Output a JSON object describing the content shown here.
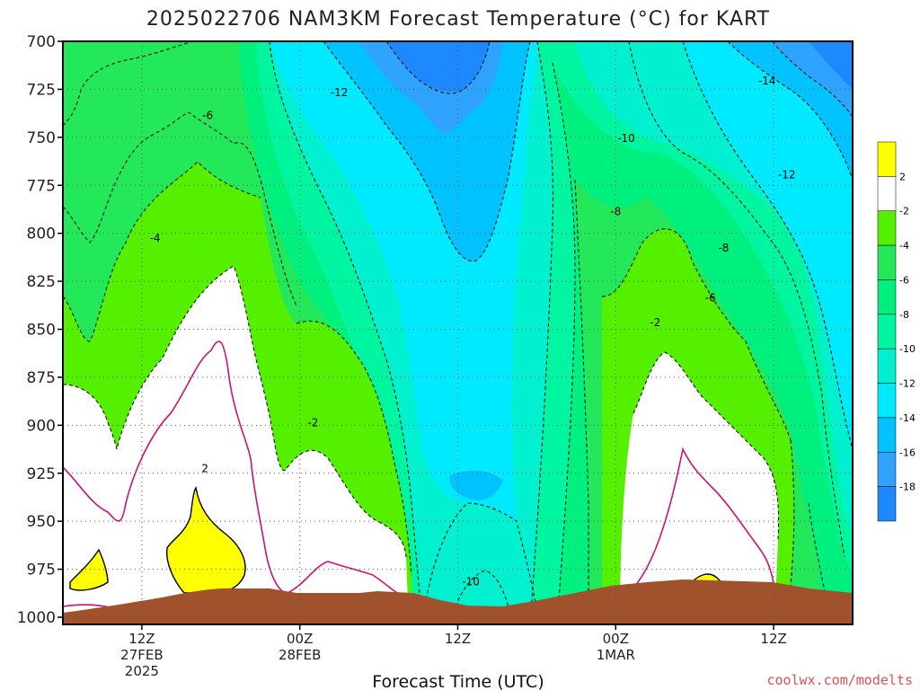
{
  "chart_data": {
    "type": "heatmap",
    "title": "2025022706 NAM3KM Forecast Temperature (°C) for KART",
    "xlabel": "Forecast Time (UTC)",
    "ylabel": "",
    "y_axis": {
      "variable": "pressure_hPa",
      "range": [
        1000,
        700
      ],
      "ticks": [
        "700",
        "725",
        "750",
        "775",
        "800",
        "825",
        "850",
        "875",
        "900",
        "925",
        "950",
        "975",
        "1000"
      ]
    },
    "x_axis": {
      "variable": "forecast_hour",
      "range": [
        6,
        66
      ],
      "ticks": [
        {
          "hour": 12,
          "line1": "12Z",
          "line2": "27FEB",
          "line3": "2025"
        },
        {
          "hour": 24,
          "line1": "00Z",
          "line2": "28FEB",
          "line3": ""
        },
        {
          "hour": 36,
          "line1": "12Z",
          "line2": "",
          "line3": ""
        },
        {
          "hour": 48,
          "line1": "00Z",
          "line2": "1MAR",
          "line3": ""
        },
        {
          "hour": 60,
          "line1": "12Z",
          "line2": "",
          "line3": ""
        }
      ]
    },
    "grid": true,
    "colorbar": {
      "placement": "right",
      "bins": [
        {
          "range": [
            -20,
            -18
          ],
          "color": "#1e88ff"
        },
        {
          "range": [
            -18,
            -16
          ],
          "color": "#2ea3ff"
        },
        {
          "range": [
            -16,
            -14
          ],
          "color": "#00c2ff"
        },
        {
          "range": [
            -14,
            -12
          ],
          "color": "#00eaff"
        },
        {
          "range": [
            -12,
            -10
          ],
          "color": "#00f0d0"
        },
        {
          "range": [
            -10,
            -8
          ],
          "color": "#00f5a0"
        },
        {
          "range": [
            -8,
            -6
          ],
          "color": "#00f080"
        },
        {
          "range": [
            -6,
            -4
          ],
          "color": "#22e85a"
        },
        {
          "range": [
            -4,
            -2
          ],
          "color": "#55f000"
        },
        {
          "range": [
            -2,
            2
          ],
          "color": "#ffffff"
        },
        {
          "range": [
            2,
            4
          ],
          "color": "#ffff00"
        }
      ],
      "labels": [
        "2",
        "-2",
        "-4",
        "-6",
        "-8",
        "-10",
        "-12",
        "-14",
        "-16",
        "-18"
      ]
    },
    "contour_labels": [
      {
        "text": "-12",
        "hour": 27.0,
        "p": 728
      },
      {
        "text": "-14",
        "hour": 59.5,
        "p": 722
      },
      {
        "text": "-6",
        "hour": 17.0,
        "p": 740
      },
      {
        "text": "-10",
        "hour": 48.8,
        "p": 752
      },
      {
        "text": "-12",
        "hour": 61.0,
        "p": 771
      },
      {
        "text": "-8",
        "hour": 48.0,
        "p": 790
      },
      {
        "text": "-4",
        "hour": 13.0,
        "p": 804
      },
      {
        "text": "-8",
        "hour": 56.2,
        "p": 809
      },
      {
        "text": "-6",
        "hour": 55.2,
        "p": 835
      },
      {
        "text": "-2",
        "hour": 51.0,
        "p": 848
      },
      {
        "text": "-2",
        "hour": 25.0,
        "p": 900
      },
      {
        "text": "2",
        "hour": 16.8,
        "p": 924
      },
      {
        "text": "-10",
        "hour": 37.0,
        "p": 983
      }
    ],
    "regions_note": "filled temperature contours by pressure level and forecast hour; brown band = below ground",
    "ground_color": "#a0522d"
  },
  "footer": {
    "credit": "coolwx.com/modelts"
  }
}
